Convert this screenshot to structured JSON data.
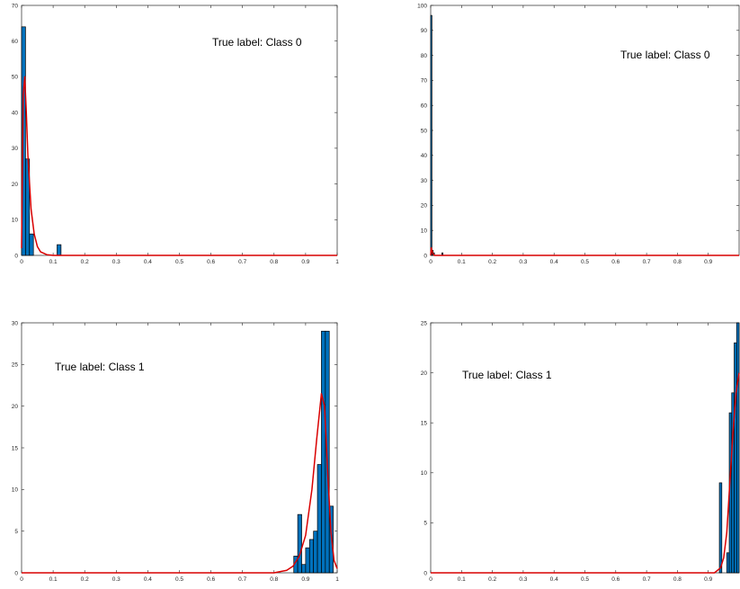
{
  "chart_data": [
    {
      "type": "bar",
      "title": "",
      "xlabel": "",
      "ylabel": "",
      "xlim": [
        0,
        1
      ],
      "ylim": [
        0,
        70
      ],
      "xticks": [
        "0",
        "0.1",
        "0.2",
        "0.3",
        "0.4",
        "0.5",
        "0.6",
        "0.7",
        "0.8",
        "0.9",
        "1"
      ],
      "yticks": [
        "0",
        "10",
        "20",
        "30",
        "40",
        "50",
        "60",
        "70"
      ],
      "annotation": "True label: Class 0",
      "bar_color": "#0072BD",
      "fit_color": "#D90000",
      "bin_width": 0.0125,
      "bins": [
        {
          "x": 0.0,
          "value": 64
        },
        {
          "x": 0.0125,
          "value": 27
        },
        {
          "x": 0.025,
          "value": 6
        },
        {
          "x": 0.1125,
          "value": 3
        }
      ],
      "fit": {
        "x": [
          0.0,
          0.005,
          0.01,
          0.015,
          0.02,
          0.03,
          0.04,
          0.05,
          0.06,
          0.08,
          0.1,
          0.15,
          0.2,
          1.0
        ],
        "y": [
          2,
          45,
          50,
          40,
          28,
          13,
          6,
          2.5,
          1,
          0.2,
          0,
          0,
          0,
          0
        ]
      }
    },
    {
      "type": "bar",
      "title": "",
      "xlabel": "",
      "ylabel": "",
      "xlim": [
        0,
        1
      ],
      "ylim": [
        0,
        100
      ],
      "xticks": [
        "0",
        "0.1",
        "0.2",
        "0.3",
        "0.4",
        "0.5",
        "0.6",
        "0.7",
        "0.8",
        "0.9"
      ],
      "yticks": [
        "0",
        "10",
        "20",
        "30",
        "40",
        "50",
        "60",
        "70",
        "80",
        "90",
        "100"
      ],
      "annotation": "True label: Class 0",
      "bar_color": "#0072BD",
      "fit_color": "#D90000",
      "bin_width": 0.004,
      "bins": [
        {
          "x": 0.0,
          "value": 96
        },
        {
          "x": 0.004,
          "value": 2
        },
        {
          "x": 0.008,
          "value": 1
        },
        {
          "x": 0.036,
          "value": 1
        }
      ],
      "fit": {
        "x": [
          0.0,
          0.002,
          0.004,
          0.008,
          0.012,
          1.0
        ],
        "y": [
          0,
          3,
          2,
          0.5,
          0,
          0
        ]
      }
    },
    {
      "type": "bar",
      "title": "",
      "xlabel": "",
      "ylabel": "",
      "xlim": [
        0,
        1
      ],
      "ylim": [
        0,
        30
      ],
      "xticks": [
        "0",
        "0.1",
        "0.2",
        "0.3",
        "0.4",
        "0.5",
        "0.6",
        "0.7",
        "0.8",
        "0.9",
        "1"
      ],
      "yticks": [
        "0",
        "5",
        "10",
        "15",
        "20",
        "25",
        "30"
      ],
      "annotation": "True label: Class 1",
      "bar_color": "#0072BD",
      "fit_color": "#D90000",
      "bin_width": 0.0125,
      "bins": [
        {
          "x": 0.8625,
          "value": 2
        },
        {
          "x": 0.875,
          "value": 7
        },
        {
          "x": 0.8875,
          "value": 1
        },
        {
          "x": 0.9,
          "value": 3
        },
        {
          "x": 0.9125,
          "value": 4
        },
        {
          "x": 0.925,
          "value": 5
        },
        {
          "x": 0.9375,
          "value": 13
        },
        {
          "x": 0.95,
          "value": 29
        },
        {
          "x": 0.9625,
          "value": 29
        },
        {
          "x": 0.975,
          "value": 8
        }
      ],
      "fit": {
        "x": [
          0.0,
          0.8,
          0.84,
          0.86,
          0.88,
          0.9,
          0.92,
          0.935,
          0.95,
          0.96,
          0.97,
          0.98,
          0.99,
          1.0
        ],
        "y": [
          0,
          0,
          0.3,
          0.8,
          2,
          4.5,
          10,
          16,
          21.5,
          20,
          12,
          5,
          1.5,
          0.5
        ]
      }
    },
    {
      "type": "bar",
      "title": "",
      "xlabel": "",
      "ylabel": "",
      "xlim": [
        0,
        1
      ],
      "ylim": [
        0,
        25
      ],
      "xticks": [
        "0",
        "0.1",
        "0.2",
        "0.3",
        "0.4",
        "0.5",
        "0.6",
        "0.7",
        "0.8",
        "0.9"
      ],
      "yticks": [
        "0",
        "5",
        "10",
        "15",
        "20",
        "25"
      ],
      "annotation": "True label: Class 1",
      "bar_color": "#0072BD",
      "fit_color": "#D90000",
      "bin_width": 0.008,
      "bins": [
        {
          "x": 0.936,
          "value": 9
        },
        {
          "x": 0.96,
          "value": 2
        },
        {
          "x": 0.968,
          "value": 16
        },
        {
          "x": 0.976,
          "value": 18
        },
        {
          "x": 0.984,
          "value": 23
        },
        {
          "x": 0.992,
          "value": 25
        }
      ],
      "fit": {
        "x": [
          0.0,
          0.92,
          0.94,
          0.95,
          0.96,
          0.97,
          0.98,
          0.99,
          1.0
        ],
        "y": [
          0,
          0,
          0.5,
          1.5,
          4,
          9,
          14,
          18,
          20
        ]
      }
    }
  ]
}
